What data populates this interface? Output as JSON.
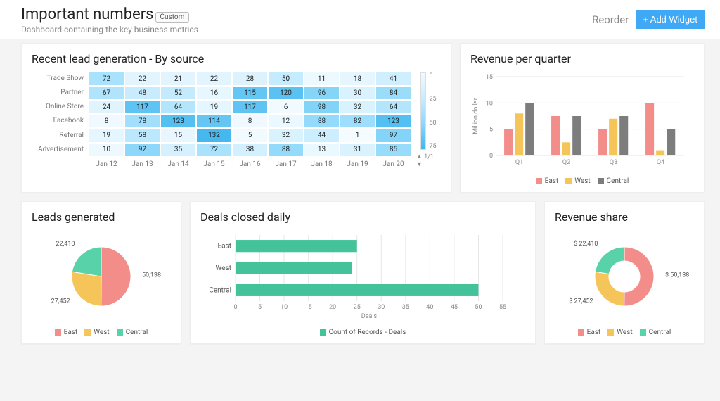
{
  "header": {
    "title": "Important numbers",
    "pill": "Custom",
    "subtitle": "Dashboard containing the key business metrics",
    "reorder_label": "Reorder",
    "add_widget_label": "+ Add Widget"
  },
  "heatmap": {
    "title": "Recent lead generation - By source",
    "row_labels": [
      "Trade Show",
      "Partner",
      "Online Store",
      "Facebook",
      "Referral",
      "Advertisement"
    ],
    "col_labels": [
      "Jan 12",
      "Jan 13",
      "Jan 14",
      "Jan 15",
      "Jan 16",
      "Jan 17",
      "Jan 18",
      "Jan 19",
      "Jan 20"
    ],
    "rows": [
      [
        72,
        22,
        21,
        22,
        28,
        50,
        11,
        18,
        41
      ],
      [
        67,
        48,
        52,
        16,
        115,
        120,
        96,
        30,
        84
      ],
      [
        24,
        117,
        64,
        19,
        117,
        6,
        98,
        32,
        64
      ],
      [
        8,
        78,
        123,
        114,
        8,
        12,
        88,
        82,
        123
      ],
      [
        19,
        58,
        15,
        132,
        5,
        32,
        44,
        1,
        97
      ],
      [
        10,
        92,
        35,
        72,
        38,
        88,
        13,
        31,
        85
      ]
    ],
    "scale_labels": [
      "0",
      "25",
      "50",
      "75"
    ],
    "pager": "1/1",
    "color_stops": [
      "#f6fcff",
      "#cdeefe",
      "#94dbfb",
      "#44b8ef"
    ],
    "value_min": 0,
    "value_max": 132
  },
  "rev_quarter": {
    "title": "Revenue per quarter",
    "type": "bar",
    "ylabel": "Million dollar",
    "ymax": 15,
    "ytick_step": 5,
    "categories": [
      "Q1",
      "Q2",
      "Q3",
      "Q4"
    ],
    "series": [
      {
        "name": "East",
        "color": "#f38d8a",
        "values": [
          5,
          7.5,
          5,
          10
        ]
      },
      {
        "name": "West",
        "color": "#f5c55a",
        "values": [
          8,
          2.5,
          7,
          1
        ]
      },
      {
        "name": "Central",
        "color": "#7d7d7d",
        "values": [
          10,
          7.5,
          7.5,
          5
        ]
      }
    ],
    "grid_color": "#e6e6e6",
    "axis_color": "#bbb",
    "tick_fontsize": 9,
    "label_fontsize": 9
  },
  "leads": {
    "title": "Leads generated",
    "type": "pie",
    "segments": [
      {
        "name": "East",
        "color": "#f38d8a",
        "value": 50138
      },
      {
        "name": "West",
        "color": "#f5c55a",
        "value": 27452
      },
      {
        "name": "Central",
        "color": "#58d2a8",
        "value": 22410
      }
    ],
    "labels": {
      "East": "50,138",
      "West": "27,452",
      "Central": "22,410"
    }
  },
  "deals": {
    "title": "Deals closed daily",
    "type": "hbar",
    "xlabel": "Deals",
    "xmax": 55,
    "xtick_step": 5,
    "categories": [
      "East",
      "West",
      "Central"
    ],
    "values": [
      25,
      24,
      50
    ],
    "color": "#44c39a",
    "legend_label": "Count of Records - Deals",
    "grid_color": "#e6e6e6",
    "axis_color": "#bbb"
  },
  "share": {
    "title": "Revenue share",
    "type": "donut",
    "segments": [
      {
        "name": "East",
        "color": "#f38d8a",
        "value": 50138
      },
      {
        "name": "West",
        "color": "#f5c55a",
        "value": 27452
      },
      {
        "name": "Central",
        "color": "#58d2a8",
        "value": 22410
      }
    ],
    "labels": {
      "East": "$ 50,138",
      "West": "$ 27,452",
      "Central": "$ 22,410"
    }
  }
}
